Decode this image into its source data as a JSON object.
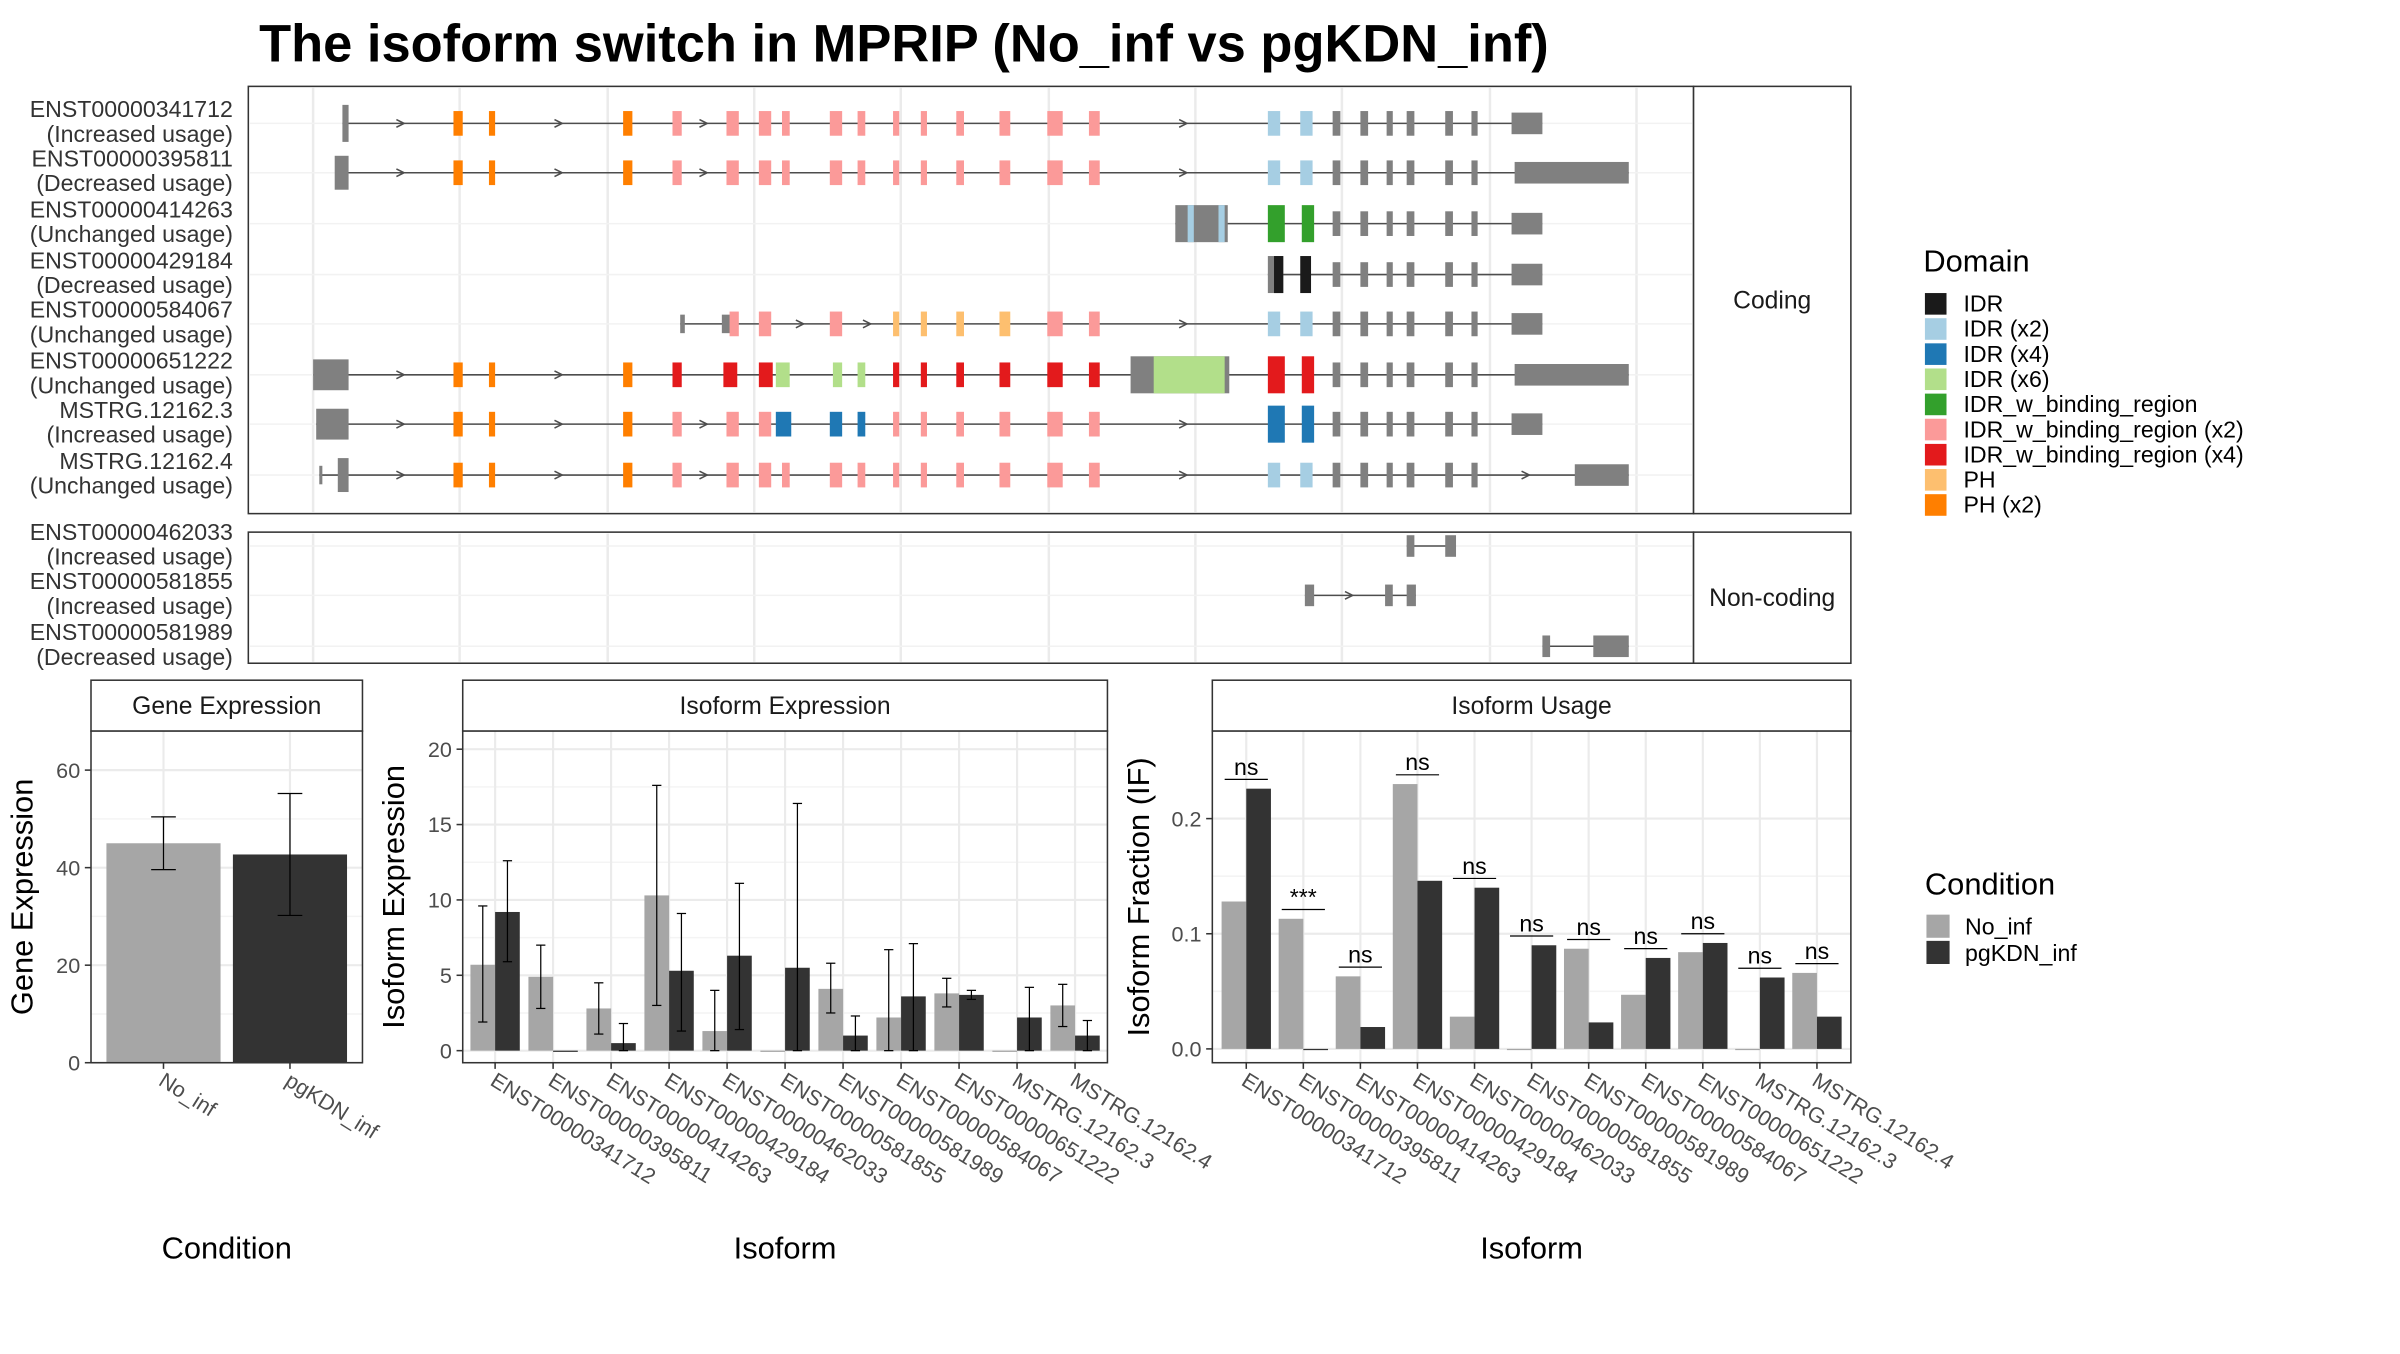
{
  "title": "The isoform switch in MPRIP (No_inf vs pgKDN_inf)",
  "colors": {
    "No_inf": "#a6a6a6",
    "pgKDN_inf": "#333333",
    "exon": "#808080",
    "intron": "#4d4d4d",
    "grid": "#ebebeb",
    "panel_border": "#333333",
    "strip_bg": "#ffffff"
  },
  "domain_legend": {
    "title": "Domain",
    "items": [
      {
        "label": "IDR",
        "color": "#1a1a1a"
      },
      {
        "label": "IDR (x2)",
        "color": "#a6cee3"
      },
      {
        "label": "IDR (x4)",
        "color": "#1f78b4"
      },
      {
        "label": "IDR (x6)",
        "color": "#b2df8a"
      },
      {
        "label": "IDR_w_binding_region",
        "color": "#33a02c"
      },
      {
        "label": "IDR_w_binding_region (x2)",
        "color": "#fb9a99"
      },
      {
        "label": "IDR_w_binding_region (x4)",
        "color": "#e31a1c"
      },
      {
        "label": "PH",
        "color": "#fdbf6f"
      },
      {
        "label": "PH (x2)",
        "color": "#ff7f00"
      }
    ]
  },
  "condition_legend": {
    "title": "Condition",
    "items": [
      {
        "label": "No_inf",
        "color": "#a6a6a6"
      },
      {
        "label": "pgKDN_inf",
        "color": "#333333"
      }
    ]
  },
  "structure": {
    "coding_label": "Coding",
    "noncoding_label": "Non-coding",
    "coding": [
      {
        "id": "ENST00000341712",
        "usage": "(Increased usage)"
      },
      {
        "id": "ENST00000395811",
        "usage": "(Decreased usage)"
      },
      {
        "id": "ENST00000414263",
        "usage": "(Unchanged usage)"
      },
      {
        "id": "ENST00000429184",
        "usage": "(Decreased usage)"
      },
      {
        "id": "ENST00000584067",
        "usage": "(Unchanged usage)"
      },
      {
        "id": "ENST00000651222",
        "usage": "(Unchanged usage)"
      },
      {
        "id": "MSTRG.12162.3",
        "usage": "(Increased usage)"
      },
      {
        "id": "MSTRG.12162.4",
        "usage": "(Unchanged usage)"
      }
    ],
    "noncoding": [
      {
        "id": "ENST00000462033",
        "usage": "(Increased usage)"
      },
      {
        "id": "ENST00000581855",
        "usage": "(Increased usage)"
      },
      {
        "id": "ENST00000581989",
        "usage": "(Decreased usage)"
      }
    ]
  },
  "chart_data": [
    {
      "type": "bar",
      "strip": "Gene Expression",
      "xlabel": "Condition",
      "ylabel": "Gene Expression",
      "ylim": [
        0,
        68
      ],
      "yticks": [
        0,
        20,
        40,
        60
      ],
      "categories": [
        "No_inf",
        "pgKDN_inf"
      ],
      "values": [
        45.0,
        42.7
      ],
      "error_low": [
        39.6,
        30.2
      ],
      "error_high": [
        50.4,
        55.2
      ]
    },
    {
      "type": "bar",
      "strip": "Isoform Expression",
      "xlabel": "Isoform",
      "ylabel": "Isoform Expression",
      "ylim": [
        -0.8,
        21.2
      ],
      "yticks": [
        0,
        5,
        10,
        15,
        20
      ],
      "categories": [
        "ENST00000341712",
        "ENST00000395811",
        "ENST00000414263",
        "ENST00000429184",
        "ENST00000462033",
        "ENST00000581855",
        "ENST00000581989",
        "ENST00000584067",
        "ENST00000651222",
        "MSTRG.12162.3",
        "MSTRG.12162.4"
      ],
      "series": [
        {
          "name": "No_inf",
          "values": [
            5.7,
            4.9,
            2.8,
            10.3,
            1.3,
            0.0,
            4.1,
            2.2,
            3.8,
            0.0,
            3.0
          ],
          "error_low": [
            1.9,
            2.8,
            1.1,
            3.0,
            0.0,
            0.0,
            2.5,
            0.0,
            2.9,
            0.0,
            1.6
          ],
          "error_high": [
            9.6,
            7.0,
            4.5,
            17.6,
            4.0,
            0.0,
            5.8,
            6.7,
            4.8,
            0.0,
            4.4
          ]
        },
        {
          "name": "pgKDN_inf",
          "values": [
            9.2,
            0.0,
            0.5,
            5.3,
            6.3,
            5.5,
            1.0,
            3.6,
            3.7,
            2.2,
            1.0
          ],
          "error_low": [
            5.9,
            0.0,
            0.0,
            1.3,
            1.4,
            0.0,
            0.0,
            0.0,
            3.4,
            0.0,
            0.0
          ],
          "error_high": [
            12.6,
            0.0,
            1.8,
            9.1,
            11.1,
            16.4,
            2.3,
            7.1,
            4.0,
            4.2,
            2.0
          ]
        }
      ]
    },
    {
      "type": "bar",
      "strip": "Isoform Usage",
      "xlabel": "Isoform",
      "ylabel": "Isoform Fraction (IF)",
      "ylim": [
        -0.012,
        0.276
      ],
      "yticks": [
        0.0,
        0.1,
        0.2
      ],
      "ytick_labels": [
        "0.0",
        "0.1",
        "0.2"
      ],
      "categories": [
        "ENST00000341712",
        "ENST00000395811",
        "ENST00000414263",
        "ENST00000429184",
        "ENST00000462033",
        "ENST00000581855",
        "ENST00000581989",
        "ENST00000584067",
        "ENST00000651222",
        "MSTRG.12162.3",
        "MSTRG.12162.4"
      ],
      "series": [
        {
          "name": "No_inf",
          "values": [
            0.128,
            0.113,
            0.063,
            0.23,
            0.028,
            0.0,
            0.087,
            0.047,
            0.084,
            0.0,
            0.066
          ]
        },
        {
          "name": "pgKDN_inf",
          "values": [
            0.226,
            0.0,
            0.019,
            0.146,
            0.14,
            0.09,
            0.023,
            0.079,
            0.092,
            0.062,
            0.028
          ]
        }
      ],
      "significance": [
        "ns",
        "***",
        "ns",
        "ns",
        "ns",
        "ns",
        "ns",
        "ns",
        "ns",
        "ns",
        "ns"
      ]
    }
  ]
}
